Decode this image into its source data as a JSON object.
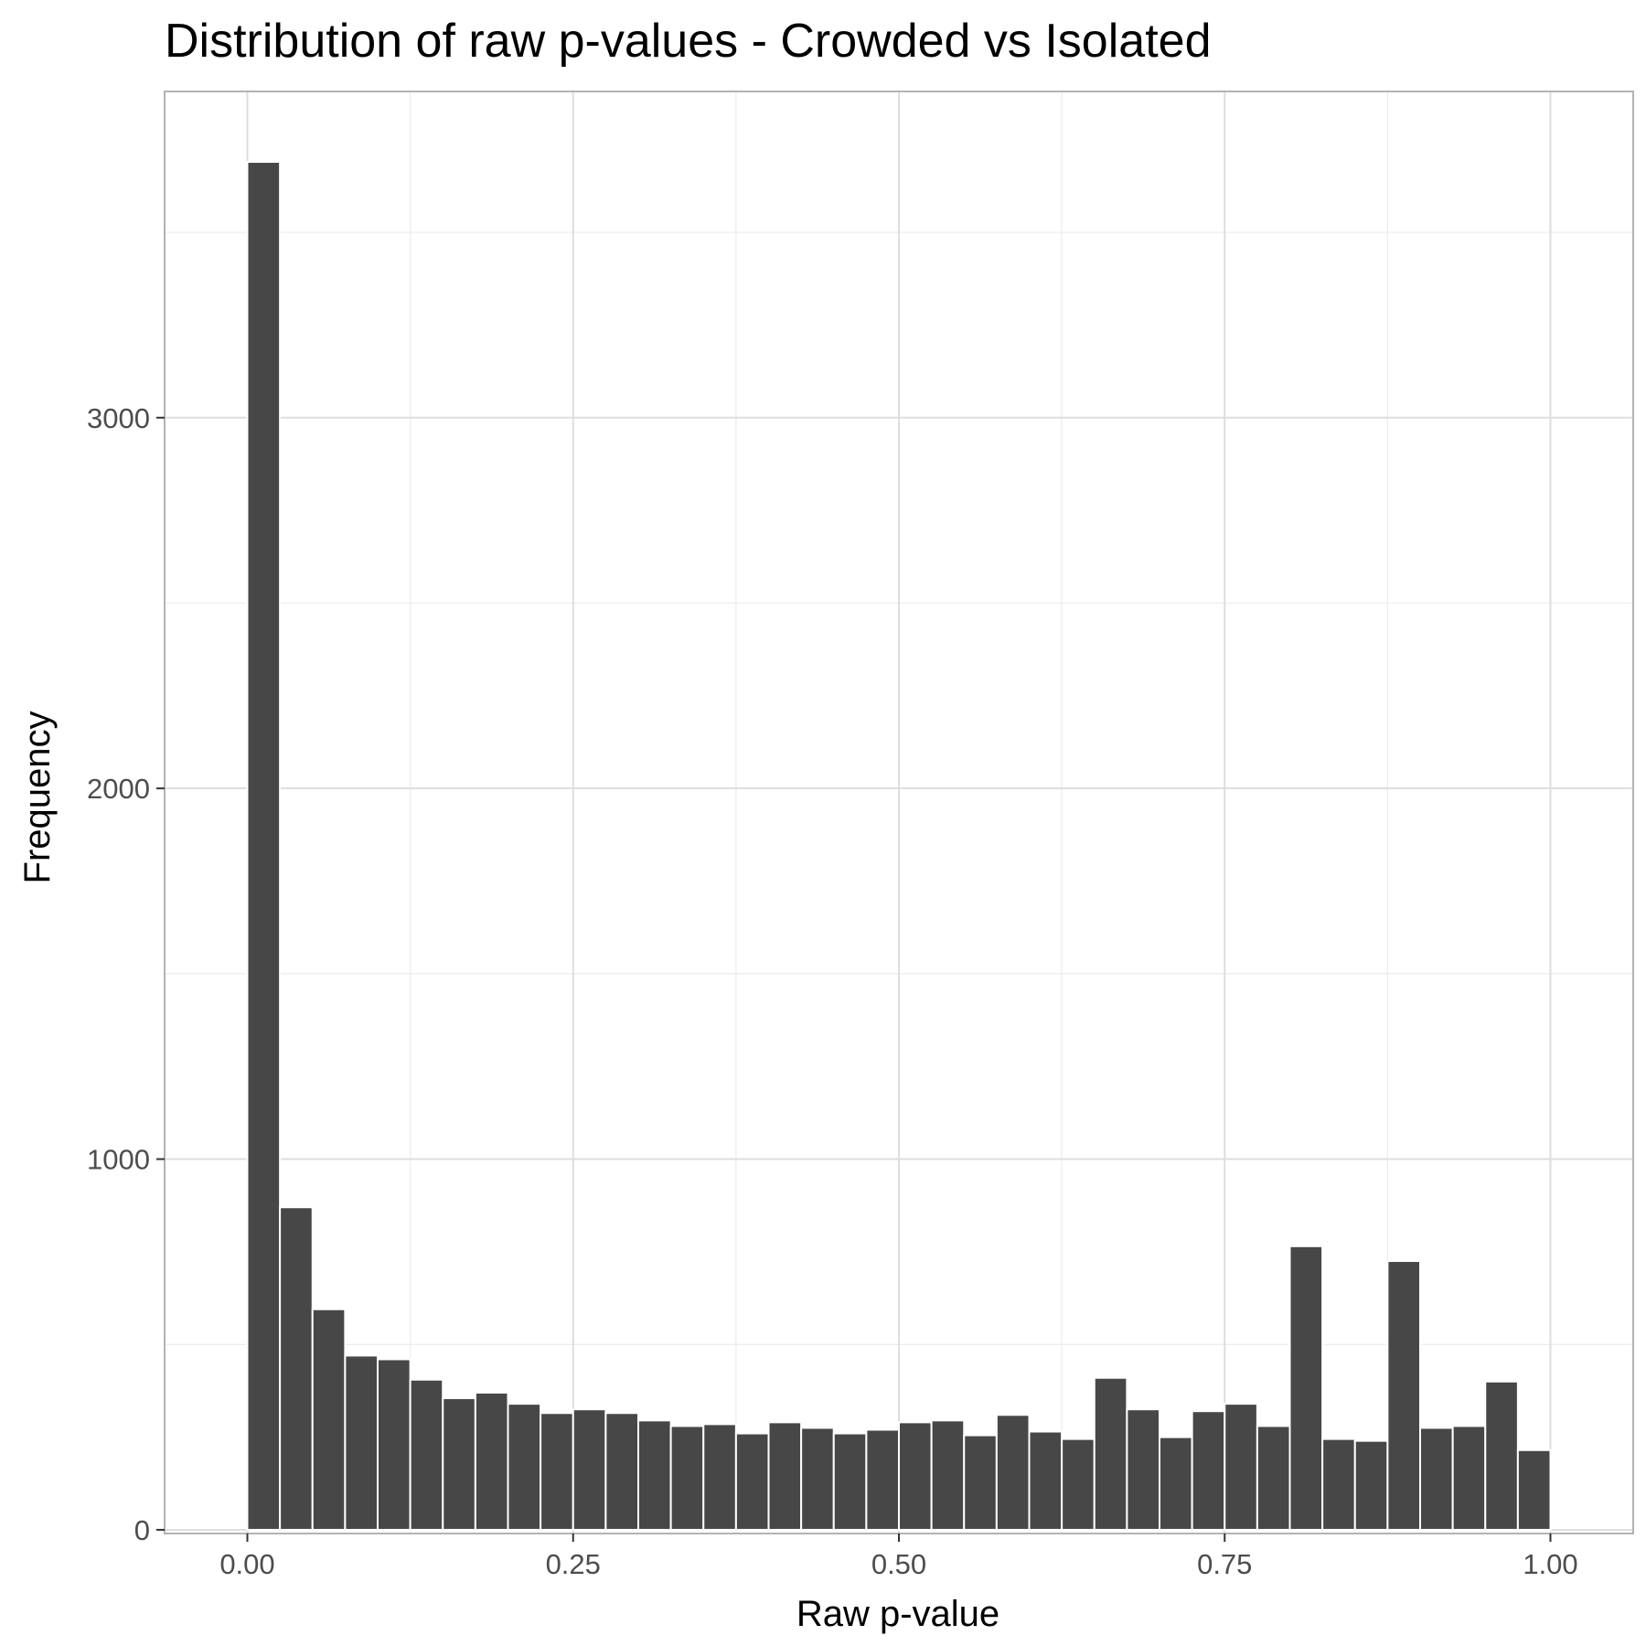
{
  "chart_data": {
    "type": "bar",
    "title": "Distribution of raw p-values - Crowded vs Isolated",
    "xlabel": "Raw p-value",
    "ylabel": "Frequency",
    "xlim": [
      -0.0635,
      1.0635
    ],
    "ylim": [
      -10,
      3880
    ],
    "x_ticks": [
      0.0,
      0.25,
      0.5,
      0.75,
      1.0
    ],
    "x_tick_labels": [
      "0.00",
      "0.25",
      "0.50",
      "0.75",
      "1.00"
    ],
    "y_ticks": [
      0,
      1000,
      2000,
      3000
    ],
    "y_tick_labels": [
      "0",
      "1000",
      "2000",
      "3000"
    ],
    "y_minor_ticks": [
      500,
      1500,
      2500,
      3500
    ],
    "bin_width": 0.025,
    "bin_centers": [
      0.0125,
      0.0375,
      0.0625,
      0.0875,
      0.1125,
      0.1375,
      0.1625,
      0.1875,
      0.2125,
      0.2375,
      0.2625,
      0.2875,
      0.3125,
      0.3375,
      0.3625,
      0.3875,
      0.4125,
      0.4375,
      0.4625,
      0.4875,
      0.5125,
      0.5375,
      0.5625,
      0.5875,
      0.6125,
      0.6375,
      0.6625,
      0.6875,
      0.7125,
      0.7375,
      0.7625,
      0.7875,
      0.8125,
      0.8375,
      0.8625,
      0.8875,
      0.9125,
      0.9375,
      0.9625,
      0.9875
    ],
    "values": [
      3690,
      870,
      595,
      470,
      460,
      405,
      355,
      370,
      340,
      315,
      325,
      315,
      295,
      280,
      285,
      260,
      290,
      275,
      260,
      270,
      290,
      295,
      255,
      310,
      265,
      245,
      410,
      325,
      250,
      320,
      340,
      280,
      765,
      245,
      240,
      725,
      275,
      280,
      400,
      215
    ],
    "grid": true,
    "bar_color": "#474747",
    "grid_color": "#dedede",
    "panel_border_color": "#b3b3b3",
    "tick_label_color": "#4d4d4d"
  }
}
